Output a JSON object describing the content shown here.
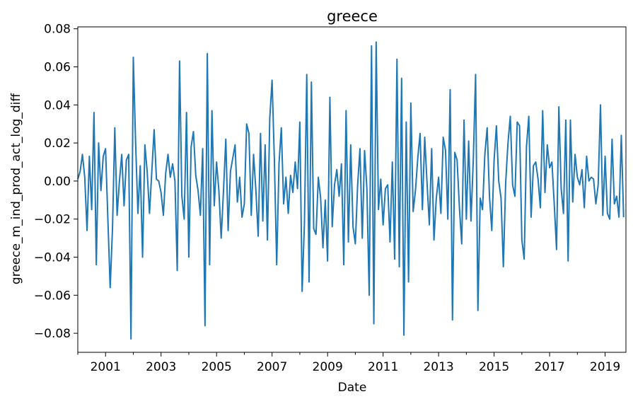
{
  "chart_data": {
    "type": "line",
    "title": "greece",
    "xlabel": "Date",
    "ylabel": "greece_m_ind_prod_act_log_diff",
    "grid": false,
    "legend": "none",
    "xlim": [
      "2000-01",
      "2019-10"
    ],
    "ylim": [
      -0.09,
      0.081
    ],
    "x_ticks": [
      "2001",
      "2003",
      "2005",
      "2007",
      "2009",
      "2011",
      "2013",
      "2015",
      "2017",
      "2019"
    ],
    "y_ticks": [
      "0.08",
      "0.06",
      "0.04",
      "0.02",
      "0.00",
      "−0.02",
      "−0.04",
      "−0.06",
      "−0.08"
    ],
    "y_tick_values": [
      0.08,
      0.06,
      0.04,
      0.02,
      0.0,
      -0.02,
      -0.04,
      -0.06,
      -0.08
    ],
    "series": [
      {
        "color": "#1f77b4",
        "start": "2000-01",
        "values": [
          0.001,
          0.005,
          0.014,
          0.002,
          -0.026,
          0.013,
          -0.015,
          0.036,
          -0.044,
          0.02,
          -0.005,
          0.013,
          0.017,
          -0.02,
          -0.056,
          -0.025,
          0.028,
          -0.018,
          0.0,
          0.014,
          -0.013,
          0.011,
          0.014,
          -0.083,
          0.065,
          0.02,
          -0.017,
          0.008,
          -0.04,
          0.019,
          0.005,
          -0.017,
          0.005,
          0.027,
          0.001,
          0.0,
          -0.006,
          -0.018,
          0.004,
          0.014,
          0.002,
          0.009,
          0.0,
          -0.047,
          0.063,
          -0.008,
          -0.02,
          0.036,
          -0.04,
          0.018,
          0.026,
          0.003,
          -0.005,
          -0.018,
          0.017,
          -0.076,
          0.067,
          -0.044,
          0.037,
          -0.013,
          0.01,
          -0.005,
          -0.03,
          -0.005,
          0.022,
          -0.026,
          0.005,
          0.012,
          0.019,
          -0.011,
          0.002,
          -0.019,
          -0.012,
          0.03,
          0.025,
          -0.018,
          0.014,
          -0.005,
          -0.029,
          0.025,
          -0.021,
          0.019,
          -0.031,
          0.033,
          0.053,
          0.011,
          -0.044,
          0.009,
          0.028,
          -0.012,
          0.002,
          -0.017,
          0.003,
          -0.006,
          0.01,
          -0.004,
          0.031,
          -0.058,
          -0.022,
          0.056,
          -0.053,
          0.052,
          -0.025,
          -0.028,
          0.002,
          -0.009,
          -0.035,
          -0.01,
          -0.042,
          0.044,
          -0.024,
          -0.002,
          0.006,
          -0.008,
          0.009,
          -0.044,
          0.037,
          -0.032,
          0.019,
          -0.024,
          -0.033,
          -0.002,
          0.017,
          -0.03,
          0.016,
          -0.004,
          -0.06,
          0.071,
          -0.075,
          0.073,
          -0.015,
          0.001,
          -0.023,
          -0.004,
          -0.002,
          -0.032,
          0.01,
          -0.041,
          0.064,
          -0.045,
          0.054,
          -0.081,
          0.031,
          -0.053,
          0.041,
          -0.016,
          -0.005,
          0.012,
          0.025,
          -0.015,
          0.023,
          -0.001,
          -0.023,
          0.017,
          -0.031,
          -0.009,
          0.002,
          -0.017,
          0.023,
          0.016,
          -0.02,
          0.048,
          -0.073,
          0.015,
          0.011,
          -0.014,
          -0.033,
          0.032,
          -0.02,
          0.021,
          -0.021,
          0.011,
          0.056,
          -0.068,
          -0.009,
          -0.015,
          0.014,
          0.028,
          -0.008,
          -0.026,
          0.011,
          0.029,
          0.0,
          -0.009,
          -0.045,
          -0.001,
          0.02,
          0.034,
          -0.002,
          -0.008,
          0.031,
          0.029,
          -0.031,
          -0.041,
          0.018,
          0.034,
          -0.019,
          0.008,
          0.01,
          0.001,
          -0.014,
          0.037,
          -0.006,
          0.019,
          0.007,
          0.01,
          -0.012,
          -0.036,
          0.039,
          -0.004,
          -0.017,
          0.032,
          -0.042,
          0.032,
          -0.011,
          0.014,
          0.002,
          -0.002,
          0.006,
          -0.014,
          0.013,
          0.0,
          0.002,
          0.001,
          -0.012,
          -0.002,
          0.04,
          -0.018,
          0.013,
          -0.017,
          -0.02,
          0.022,
          -0.012,
          -0.008,
          -0.019,
          0.024,
          -0.019
        ]
      }
    ]
  }
}
